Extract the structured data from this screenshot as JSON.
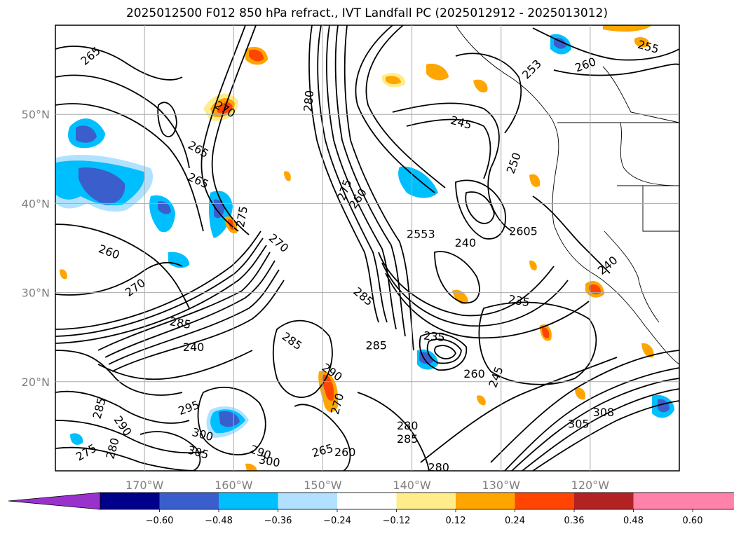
{
  "title": "2025012500 F012 850 hPa refract., IVT Landfall PC (2025012912 - 2025013012)",
  "map": {
    "lon_range": [
      -180,
      -110
    ],
    "lat_range": [
      10,
      60
    ],
    "lat_ticks": [
      {
        "value": 50,
        "label": "50°N"
      },
      {
        "value": 40,
        "label": "40°N"
      },
      {
        "value": 30,
        "label": "30°N"
      },
      {
        "value": 20,
        "label": "20°N"
      }
    ],
    "lon_ticks": [
      {
        "value": -170,
        "label": "170°W"
      },
      {
        "value": -160,
        "label": "160°W"
      },
      {
        "value": -150,
        "label": "150°W"
      },
      {
        "value": -140,
        "label": "140°W"
      },
      {
        "value": -130,
        "label": "130°W"
      },
      {
        "value": -120,
        "label": "120°W"
      }
    ],
    "grid": true,
    "contour_labels": [
      {
        "text": "265",
        "lon": -176,
        "lat": 56.5,
        "rot": -40
      },
      {
        "text": "270",
        "lon": -161,
        "lat": 50.5,
        "rot": 30
      },
      {
        "text": "265",
        "lon": -164,
        "lat": 46,
        "rot": 30
      },
      {
        "text": "265",
        "lon": -164,
        "lat": 42.5,
        "rot": 25
      },
      {
        "text": "275",
        "lon": -159,
        "lat": 38.5,
        "rot": -80
      },
      {
        "text": "270",
        "lon": -155,
        "lat": 35.5,
        "rot": 40
      },
      {
        "text": "260",
        "lon": -174,
        "lat": 34.5,
        "rot": 20
      },
      {
        "text": "270",
        "lon": -171,
        "lat": 30.5,
        "rot": -35
      },
      {
        "text": "285",
        "lon": -166,
        "lat": 26.5,
        "rot": 10
      },
      {
        "text": "240",
        "lon": -164.5,
        "lat": 23.8,
        "rot": 0
      },
      {
        "text": "285",
        "lon": -153.5,
        "lat": 24.5,
        "rot": 35
      },
      {
        "text": "290",
        "lon": -149,
        "lat": 21,
        "rot": 35
      },
      {
        "text": "285",
        "lon": -144,
        "lat": 24,
        "rot": 0
      },
      {
        "text": "285",
        "lon": -145.5,
        "lat": 29.5,
        "rot": 40
      },
      {
        "text": "275",
        "lon": -147.5,
        "lat": 41.5,
        "rot": -70
      },
      {
        "text": "260",
        "lon": -146,
        "lat": 40.5,
        "rot": -55
      },
      {
        "text": "280",
        "lon": -151.5,
        "lat": 51.5,
        "rot": -85
      },
      {
        "text": "245",
        "lon": -134.5,
        "lat": 49,
        "rot": 15
      },
      {
        "text": "250",
        "lon": -128.5,
        "lat": 44.5,
        "rot": -70
      },
      {
        "text": "253",
        "lon": -126.5,
        "lat": 55,
        "rot": -45
      },
      {
        "text": "260",
        "lon": -120.5,
        "lat": 55.5,
        "rot": -20
      },
      {
        "text": "255",
        "lon": -113.5,
        "lat": 57.5,
        "rot": 15
      },
      {
        "text": "2553",
        "lon": -139,
        "lat": 36.5,
        "rot": 0
      },
      {
        "text": "240",
        "lon": -134,
        "lat": 35.5,
        "rot": 0
      },
      {
        "text": "2605",
        "lon": -127.5,
        "lat": 36.8,
        "rot": 0
      },
      {
        "text": "240",
        "lon": -118,
        "lat": 33,
        "rot": -40
      },
      {
        "text": "235",
        "lon": -137.5,
        "lat": 25,
        "rot": 5
      },
      {
        "text": "235",
        "lon": -128,
        "lat": 29,
        "rot": 10
      },
      {
        "text": "260",
        "lon": -133,
        "lat": 20.8,
        "rot": 0
      },
      {
        "text": "245",
        "lon": -130.5,
        "lat": 20.5,
        "rot": -70
      },
      {
        "text": "295",
        "lon": -165,
        "lat": 17,
        "rot": -20
      },
      {
        "text": "290",
        "lon": -172.5,
        "lat": 15,
        "rot": 55
      },
      {
        "text": "285",
        "lon": -175,
        "lat": 17,
        "rot": -75
      },
      {
        "text": "280",
        "lon": -173.5,
        "lat": 12.5,
        "rot": -75
      },
      {
        "text": "275",
        "lon": -176.5,
        "lat": 12,
        "rot": -30
      },
      {
        "text": "300",
        "lon": -163.5,
        "lat": 14,
        "rot": 15
      },
      {
        "text": "305",
        "lon": -164,
        "lat": 12,
        "rot": 15
      },
      {
        "text": "290",
        "lon": -157,
        "lat": 12,
        "rot": 20
      },
      {
        "text": "300",
        "lon": -156,
        "lat": 11,
        "rot": 10
      },
      {
        "text": "265",
        "lon": -150,
        "lat": 12.2,
        "rot": -15
      },
      {
        "text": "260",
        "lon": -147.5,
        "lat": 12,
        "rot": 0
      },
      {
        "text": "270",
        "lon": -148.3,
        "lat": 17.5,
        "rot": -75
      },
      {
        "text": "280",
        "lon": -140.5,
        "lat": 15,
        "rot": 0
      },
      {
        "text": "285",
        "lon": -140.5,
        "lat": 13.5,
        "rot": 0
      },
      {
        "text": "305",
        "lon": -121.3,
        "lat": 15.2,
        "rot": 0
      },
      {
        "text": "308",
        "lon": -118.5,
        "lat": 16.5,
        "rot": 0
      },
      {
        "text": "280",
        "lon": -137,
        "lat": 10.3,
        "rot": 0
      }
    ]
  },
  "colorbar": {
    "tick_labels": [
      "−0.60",
      "−0.48",
      "−0.36",
      "−0.24",
      "−0.12",
      "0.12",
      "0.24",
      "0.36",
      "0.48",
      "0.60"
    ],
    "colors": [
      "#9932cc",
      "#00008b",
      "#3a5fcd",
      "#00bfff",
      "#b0e2ff",
      "#ffffff",
      "#ffec8b",
      "#ffa500",
      "#ff4500",
      "#b22222",
      "#ff82ab",
      "#ff82ab"
    ],
    "under_color": "#9932cc",
    "over_color": "#ff82ab"
  },
  "colors": {
    "grid": "#aaaaaa",
    "contour": "#000000",
    "tick_text": "#808080"
  }
}
